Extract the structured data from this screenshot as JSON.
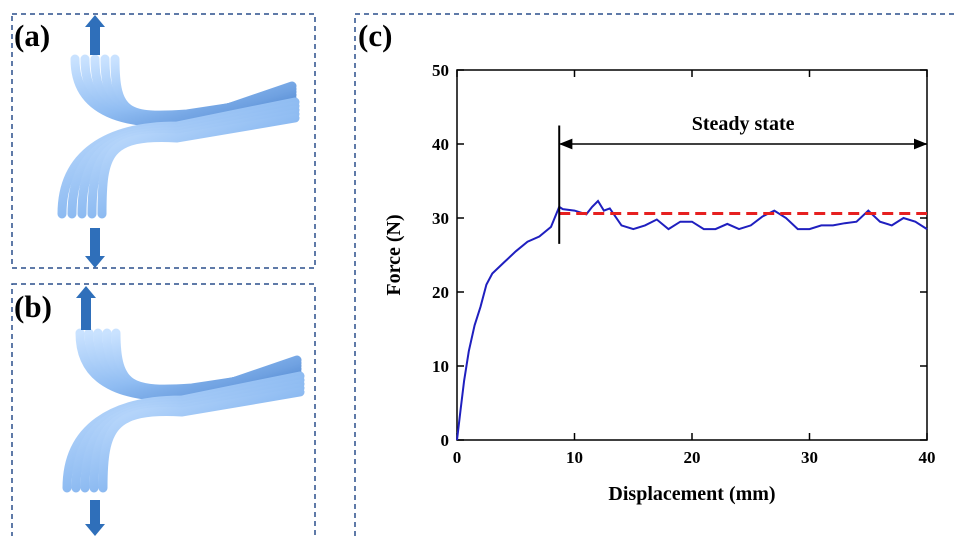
{
  "panels": {
    "a": "(a)",
    "b": "(b)",
    "c": "(c)"
  },
  "chart_data": {
    "type": "line",
    "xlabel": "Displacement (mm)",
    "ylabel": "Force (N)",
    "xlim": [
      0,
      40
    ],
    "ylim": [
      0,
      50
    ],
    "xticks": [
      0,
      10,
      20,
      30,
      40
    ],
    "yticks": [
      0,
      10,
      20,
      30,
      40,
      50
    ],
    "color": "#1f1fbf",
    "x": [
      0,
      0.3,
      0.6,
      1,
      1.5,
      2,
      2.5,
      3,
      4,
      5,
      6,
      7,
      8,
      8.7,
      9,
      10,
      11,
      11.5,
      12,
      12.5,
      13,
      14,
      15,
      16,
      17,
      18,
      19,
      20,
      21,
      22,
      23,
      24,
      25,
      26,
      27,
      28,
      29,
      30,
      31,
      32,
      33,
      34,
      35,
      36,
      37,
      38,
      39,
      40
    ],
    "values": [
      0,
      4,
      8,
      12,
      15.5,
      18,
      21,
      22.5,
      24,
      25.5,
      26.8,
      27.5,
      28.8,
      31.5,
      31.2,
      31,
      30.5,
      31.5,
      32.3,
      31,
      31.3,
      29,
      28.5,
      29,
      29.8,
      28.5,
      29.5,
      29.5,
      28.5,
      28.5,
      29.2,
      28.5,
      29,
      30.2,
      31,
      30,
      28.5,
      28.5,
      29,
      29,
      29.3,
      29.5,
      31,
      29.5,
      29,
      30,
      29.5,
      28.5
    ],
    "reference_line": {
      "y": 30.6,
      "x": [
        8.7,
        40
      ],
      "color": "#e62020"
    },
    "marker_line": {
      "x": 8.7,
      "y": [
        26.5,
        42.5
      ]
    },
    "range_arrow": {
      "label": "Steady state",
      "y": 40,
      "x": [
        8.7,
        40
      ]
    }
  }
}
